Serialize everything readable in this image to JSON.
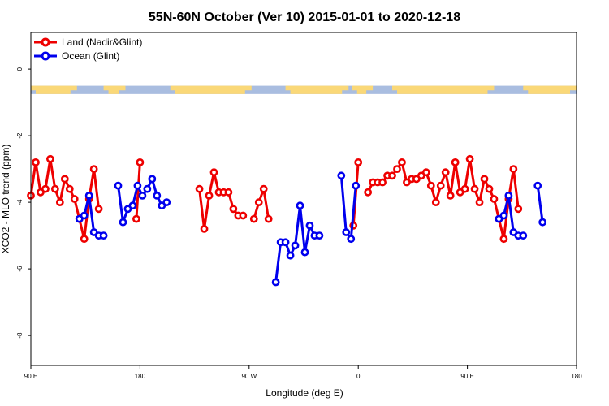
{
  "chart_data": {
    "type": "line",
    "title": "55N-60N October (Ver 10)   2015-01-01 to 2020-12-18",
    "xlabel": "Longitude (deg E)",
    "ylabel": "XCO2 - MLO trend (ppm)",
    "xlim": [
      90,
      540
    ],
    "ylim": [
      -8.9,
      1.1
    ],
    "xticks": [
      {
        "value": 90,
        "label": "90 E"
      },
      {
        "value": 180,
        "label": "180"
      },
      {
        "value": 270,
        "label": "90 W"
      },
      {
        "value": 360,
        "label": "0"
      },
      {
        "value": 450,
        "label": "90 E"
      },
      {
        "value": 540,
        "label": "180"
      }
    ],
    "yticks": [
      {
        "value": 0,
        "label": "0"
      },
      {
        "value": -2,
        "label": "-2"
      },
      {
        "value": -4,
        "label": "-4"
      },
      {
        "value": -6,
        "label": "-6"
      },
      {
        "value": -8,
        "label": "-8"
      }
    ],
    "legend_position": "top-left",
    "land_ocean_band": {
      "y_top": -0.5,
      "y_bottom": -0.75,
      "land_color": "#fad878",
      "ocean_color": "#a9bde0"
    },
    "series": [
      {
        "name": "Land (Nadir&Glint)",
        "color": "#ee0000",
        "segments": [
          [
            [
              90,
              -3.8
            ],
            [
              94,
              -2.8
            ],
            [
              98,
              -3.7
            ],
            [
              102,
              -3.6
            ],
            [
              106,
              -2.7
            ],
            [
              110,
              -3.6
            ],
            [
              114,
              -4.0
            ],
            [
              118,
              -3.3
            ],
            [
              122,
              -3.6
            ],
            [
              126,
              -3.9
            ],
            [
              130,
              -4.5
            ],
            [
              134,
              -5.1
            ],
            [
              138,
              -3.9
            ],
            [
              142,
              -3.0
            ],
            [
              146,
              -4.2
            ]
          ],
          [
            [
              177,
              -4.5
            ],
            [
              180,
              -2.8
            ]
          ],
          [
            [
              229,
              -3.6
            ],
            [
              233,
              -4.8
            ],
            [
              237,
              -3.8
            ],
            [
              241,
              -3.1
            ],
            [
              245,
              -3.7
            ],
            [
              249,
              -3.7
            ],
            [
              253,
              -3.7
            ],
            [
              257,
              -4.2
            ],
            [
              261,
              -4.4
            ],
            [
              265,
              -4.4
            ]
          ],
          [
            [
              274,
              -4.5
            ],
            [
              278,
              -4.0
            ],
            [
              282,
              -3.6
            ],
            [
              286,
              -4.5
            ]
          ],
          [
            [
              356,
              -4.7
            ],
            [
              360,
              -2.8
            ]
          ],
          [
            [
              368,
              -3.7
            ],
            [
              372,
              -3.4
            ],
            [
              376,
              -3.4
            ],
            [
              380,
              -3.4
            ],
            [
              384,
              -3.2
            ],
            [
              388,
              -3.2
            ],
            [
              392,
              -3.0
            ],
            [
              396,
              -2.8
            ],
            [
              400,
              -3.4
            ],
            [
              404,
              -3.3
            ],
            [
              408,
              -3.3
            ],
            [
              412,
              -3.2
            ],
            [
              416,
              -3.1
            ],
            [
              420,
              -3.5
            ],
            [
              424,
              -4.0
            ],
            [
              428,
              -3.5
            ],
            [
              432,
              -3.1
            ],
            [
              436,
              -3.8
            ],
            [
              440,
              -2.8
            ],
            [
              444,
              -3.7
            ],
            [
              448,
              -3.6
            ],
            [
              452,
              -2.7
            ],
            [
              456,
              -3.6
            ],
            [
              460,
              -4.0
            ],
            [
              464,
              -3.3
            ],
            [
              468,
              -3.6
            ],
            [
              472,
              -3.9
            ],
            [
              476,
              -4.5
            ],
            [
              480,
              -5.1
            ],
            [
              484,
              -3.9
            ],
            [
              488,
              -3.0
            ],
            [
              492,
              -4.2
            ]
          ]
        ]
      },
      {
        "name": "Ocean (Glint)",
        "color": "#0000ee",
        "segments": [
          [
            [
              130,
              -4.5
            ],
            [
              134,
              -4.4
            ],
            [
              138,
              -3.8
            ],
            [
              142,
              -4.9
            ],
            [
              146,
              -5.0
            ],
            [
              150,
              -5.0
            ]
          ],
          [
            [
              162,
              -3.5
            ],
            [
              166,
              -4.6
            ],
            [
              170,
              -4.2
            ],
            [
              174,
              -4.1
            ],
            [
              178,
              -3.5
            ],
            [
              182,
              -3.8
            ],
            [
              186,
              -3.6
            ],
            [
              190,
              -3.3
            ],
            [
              194,
              -3.8
            ],
            [
              198,
              -4.1
            ],
            [
              202,
              -4.0
            ]
          ],
          [
            [
              292,
              -6.4
            ],
            [
              296,
              -5.2
            ],
            [
              300,
              -5.2
            ],
            [
              304,
              -5.6
            ],
            [
              308,
              -5.3
            ],
            [
              312,
              -4.1
            ],
            [
              316,
              -5.5
            ],
            [
              320,
              -4.7
            ],
            [
              324,
              -5.0
            ],
            [
              328,
              -5.0
            ]
          ],
          [
            [
              346,
              -3.2
            ],
            [
              350,
              -4.9
            ],
            [
              354,
              -5.1
            ],
            [
              358,
              -3.5
            ]
          ],
          [
            [
              476,
              -4.5
            ],
            [
              480,
              -4.4
            ],
            [
              484,
              -3.8
            ],
            [
              488,
              -4.9
            ],
            [
              492,
              -5.0
            ],
            [
              496,
              -5.0
            ]
          ],
          [
            [
              508,
              -3.5
            ],
            [
              512,
              -4.6
            ]
          ]
        ]
      }
    ]
  }
}
